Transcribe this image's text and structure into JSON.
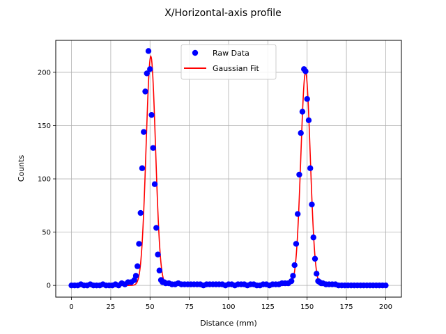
{
  "chart_data": {
    "type": "scatter",
    "title": "X/Horizontal-axis profile",
    "xlabel": "Distance (mm)",
    "ylabel": "Counts",
    "xlim": [
      -10,
      210
    ],
    "ylim": [
      -11,
      230
    ],
    "xticks": [
      0,
      25,
      50,
      75,
      100,
      125,
      150,
      175,
      200
    ],
    "yticks": [
      0,
      50,
      100,
      150,
      200
    ],
    "grid": true,
    "legend_position": "top-center",
    "series": [
      {
        "name": "Raw Data",
        "kind": "scatter",
        "color": "#0000ff",
        "x": [
          0,
          2,
          4,
          6,
          8,
          10,
          12,
          14,
          16,
          18,
          20,
          22,
          24,
          26,
          28,
          30,
          32,
          34,
          36,
          38,
          40,
          41,
          42,
          43,
          44,
          45,
          46,
          47,
          48,
          49,
          50,
          51,
          52,
          53,
          54,
          55,
          56,
          57,
          58,
          59,
          60,
          62,
          64,
          66,
          68,
          70,
          72,
          74,
          76,
          78,
          80,
          82,
          84,
          86,
          88,
          90,
          92,
          94,
          96,
          98,
          100,
          102,
          104,
          106,
          108,
          110,
          112,
          114,
          116,
          118,
          120,
          122,
          124,
          126,
          128,
          130,
          132,
          134,
          136,
          138,
          140,
          141,
          142,
          143,
          144,
          145,
          146,
          147,
          148,
          149,
          150,
          151,
          152,
          153,
          154,
          155,
          156,
          157,
          158,
          159,
          160,
          162,
          164,
          166,
          168,
          170,
          172,
          174,
          176,
          178,
          180,
          182,
          184,
          186,
          188,
          190,
          192,
          194,
          196,
          198,
          200
        ],
        "y": [
          0,
          0,
          0,
          1,
          0,
          0,
          1,
          0,
          0,
          0,
          1,
          0,
          0,
          0,
          1,
          0,
          2,
          1,
          3,
          3,
          5,
          9,
          18,
          39,
          68,
          110,
          144,
          182,
          199,
          220,
          203,
          160,
          129,
          95,
          54,
          29,
          14,
          5,
          3,
          3,
          2,
          2,
          1,
          1,
          2,
          1,
          1,
          1,
          1,
          1,
          1,
          1,
          0,
          1,
          1,
          1,
          1,
          1,
          1,
          0,
          1,
          1,
          0,
          1,
          1,
          1,
          0,
          1,
          1,
          0,
          0,
          1,
          1,
          0,
          1,
          1,
          1,
          2,
          2,
          2,
          4,
          9,
          19,
          39,
          67,
          104,
          143,
          163,
          203,
          201,
          175,
          155,
          110,
          76,
          45,
          25,
          11,
          4,
          3,
          2,
          2,
          1,
          1,
          1,
          1,
          0,
          0,
          0,
          0,
          0,
          0,
          0,
          0,
          0,
          0,
          0,
          0,
          0,
          0,
          0,
          0
        ]
      },
      {
        "name": "Gaussian Fit",
        "kind": "line",
        "color": "#ff0000",
        "peaks": [
          {
            "amplitude": 215,
            "center": 50.5,
            "sigma": 3.0
          },
          {
            "amplitude": 200,
            "center": 149,
            "sigma": 3.0
          }
        ],
        "x_range": [
          0,
          200
        ]
      }
    ]
  }
}
